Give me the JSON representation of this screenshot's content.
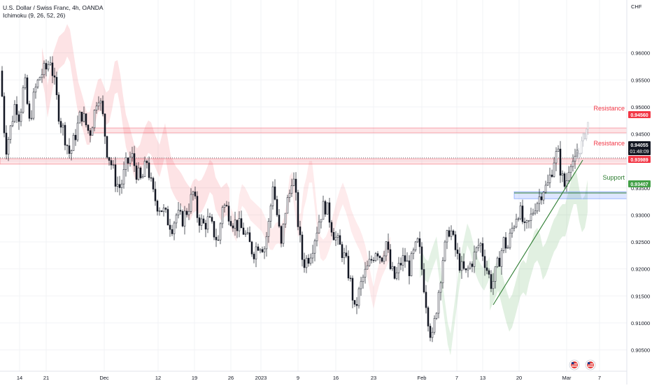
{
  "header": {
    "symbol_line": "U.S. Dollar / Swiss Franc, 4h, OANDA",
    "indicator_line": "Ichimoku (9, 26, 52, 26)"
  },
  "price_axis": {
    "currency": "CHF",
    "ticks": [
      "0.96000",
      "0.95500",
      "0.95000",
      "0.94500",
      "0.94000",
      "0.93500",
      "0.93000",
      "0.92500",
      "0.92000",
      "0.91500",
      "0.91000",
      "0.90500"
    ]
  },
  "time_axis": {
    "labels": [
      "14",
      "21",
      "Dec",
      "12",
      "19",
      "26",
      "2023",
      "9",
      "16",
      "23",
      "Feb",
      "7",
      "13",
      "20",
      "Mar",
      "7"
    ]
  },
  "price_labels": {
    "resistance_high": "0.94560",
    "last_price": "0.94055",
    "countdown": "01:48:09",
    "resistance_low": "0.93989",
    "support": "0.93407"
  },
  "annotations": {
    "resistance_1": "Resistance",
    "resistance_2": "Resistance",
    "support": "Support"
  },
  "colors": {
    "resistance": "#f23645",
    "support": "#2e7d32",
    "support_zone": "#2962ff",
    "trendline": "#2e7d32",
    "bull_candle": "#ffffff",
    "bear_candle": "#131722"
  },
  "chart_data": {
    "type": "candlestick",
    "ylim": [
      0.903,
      0.9685
    ],
    "x": [
      "14",
      "21",
      "Dec",
      "12",
      "19",
      "26",
      "2023",
      "9",
      "16",
      "23",
      "Feb",
      "7",
      "13",
      "20",
      "Mar",
      "7"
    ],
    "close_path": [
      [
        0,
        0.966
      ],
      [
        3,
        0.952
      ],
      [
        8,
        0.942
      ],
      [
        15,
        0.946
      ],
      [
        22,
        0.951
      ],
      [
        28,
        0.948
      ],
      [
        35,
        0.955
      ],
      [
        42,
        0.947
      ],
      [
        50,
        0.953
      ],
      [
        58,
        0.956
      ],
      [
        66,
        0.957
      ],
      [
        72,
        0.959
      ],
      [
        78,
        0.954
      ],
      [
        85,
        0.948
      ],
      [
        92,
        0.945
      ],
      [
        100,
        0.941
      ],
      [
        108,
        0.945
      ],
      [
        116,
        0.949
      ],
      [
        122,
        0.947
      ],
      [
        128,
        0.945
      ],
      [
        135,
        0.949
      ],
      [
        140,
        0.953
      ],
      [
        146,
        0.949
      ],
      [
        153,
        0.942
      ],
      [
        160,
        0.939
      ],
      [
        166,
        0.936
      ],
      [
        172,
        0.935
      ],
      [
        180,
        0.939
      ],
      [
        188,
        0.941
      ],
      [
        195,
        0.938
      ],
      [
        202,
        0.936
      ],
      [
        210,
        0.94
      ],
      [
        218,
        0.934
      ],
      [
        225,
        0.932
      ],
      [
        232,
        0.931
      ],
      [
        240,
        0.929
      ],
      [
        246,
        0.928
      ],
      [
        252,
        0.93
      ],
      [
        260,
        0.929
      ],
      [
        268,
        0.931
      ],
      [
        276,
        0.934
      ],
      [
        282,
        0.93
      ],
      [
        290,
        0.928
      ],
      [
        298,
        0.929
      ],
      [
        305,
        0.927
      ],
      [
        312,
        0.925
      ],
      [
        318,
        0.932
      ],
      [
        325,
        0.931
      ],
      [
        332,
        0.929
      ],
      [
        340,
        0.928
      ],
      [
        348,
        0.927
      ],
      [
        355,
        0.925
      ],
      [
        362,
        0.923
      ],
      [
        370,
        0.925
      ],
      [
        378,
        0.924
      ],
      [
        385,
        0.929
      ],
      [
        390,
        0.936
      ],
      [
        396,
        0.93
      ],
      [
        402,
        0.924
      ],
      [
        408,
        0.931
      ],
      [
        414,
        0.934
      ],
      [
        418,
        0.938
      ],
      [
        422,
        0.934
      ],
      [
        428,
        0.926
      ],
      [
        433,
        0.921
      ],
      [
        440,
        0.922
      ],
      [
        446,
        0.924
      ],
      [
        452,
        0.927
      ],
      [
        458,
        0.93
      ],
      [
        464,
        0.932
      ],
      [
        470,
        0.93
      ],
      [
        476,
        0.927
      ],
      [
        482,
        0.925
      ],
      [
        490,
        0.923
      ],
      [
        497,
        0.92
      ],
      [
        503,
        0.916
      ],
      [
        507,
        0.912
      ],
      [
        512,
        0.915
      ],
      [
        518,
        0.918
      ],
      [
        525,
        0.92
      ],
      [
        532,
        0.922
      ],
      [
        538,
        0.924
      ],
      [
        545,
        0.922
      ],
      [
        552,
        0.925
      ],
      [
        558,
        0.92
      ],
      [
        565,
        0.918
      ],
      [
        572,
        0.921
      ],
      [
        578,
        0.922
      ],
      [
        585,
        0.92
      ],
      [
        592,
        0.923
      ],
      [
        598,
        0.925
      ],
      [
        604,
        0.919
      ],
      [
        609,
        0.914
      ],
      [
        614,
        0.909
      ],
      [
        618,
        0.907
      ],
      [
        623,
        0.912
      ],
      [
        628,
        0.917
      ],
      [
        633,
        0.922
      ],
      [
        638,
        0.925
      ],
      [
        643,
        0.928
      ],
      [
        648,
        0.925
      ],
      [
        654,
        0.922
      ],
      [
        660,
        0.92
      ],
      [
        666,
        0.919
      ],
      [
        673,
        0.921
      ],
      [
        680,
        0.923
      ],
      [
        686,
        0.925
      ],
      [
        692,
        0.922
      ],
      [
        698,
        0.919
      ],
      [
        703,
        0.917
      ],
      [
        708,
        0.919
      ],
      [
        714,
        0.922
      ],
      [
        720,
        0.925
      ],
      [
        726,
        0.924
      ],
      [
        731,
        0.927
      ],
      [
        736,
        0.929
      ],
      [
        740,
        0.931
      ],
      [
        745,
        0.93
      ],
      [
        750,
        0.927
      ],
      [
        755,
        0.928
      ],
      [
        760,
        0.93
      ],
      [
        765,
        0.932
      ],
      [
        770,
        0.933
      ],
      [
        776,
        0.935
      ],
      [
        782,
        0.935
      ],
      [
        788,
        0.938
      ],
      [
        793,
        0.941
      ],
      [
        798,
        0.941
      ],
      [
        803,
        0.937
      ],
      [
        808,
        0.935
      ],
      [
        813,
        0.939
      ],
      [
        817,
        0.941
      ],
      [
        821,
        0.939
      ],
      [
        825,
        0.941
      ]
    ],
    "projection": [
      [
        822,
        0.9405
      ],
      [
        832,
        0.9437
      ],
      [
        841,
        0.947
      ]
    ],
    "levels": [
      {
        "label": "Resistance",
        "price": 0.9456,
        "zone": [
          0.9452,
          0.9461
        ]
      },
      {
        "label": "Resistance",
        "price": 0.93989,
        "zone": [
          0.9394,
          0.9404
        ]
      },
      {
        "label": "Support",
        "price": 0.93407,
        "zone": [
          0.933,
          0.9343
        ]
      }
    ],
    "last_price": 0.94055
  }
}
